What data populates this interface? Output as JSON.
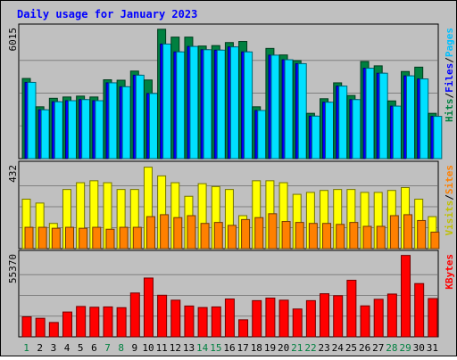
{
  "chart_data": {
    "type": "bar",
    "title": "Daily usage for January 2023",
    "categories": [
      "1",
      "2",
      "3",
      "4",
      "5",
      "6",
      "7",
      "8",
      "9",
      "10",
      "11",
      "12",
      "13",
      "14",
      "15",
      "16",
      "17",
      "18",
      "19",
      "20",
      "21",
      "22",
      "23",
      "24",
      "25",
      "26",
      "27",
      "28",
      "29",
      "30",
      "31"
    ],
    "weekend_days": [
      "1",
      "7",
      "8",
      "14",
      "15",
      "21",
      "22",
      "28",
      "29"
    ],
    "panels": [
      {
        "id": "hits-panel",
        "max_label": "6015",
        "ymax": 6015,
        "ylabel_parts": [
          {
            "text": "Hits",
            "color": "#008040"
          },
          {
            "text": "/",
            "color": "#000000"
          },
          {
            "text": "Files",
            "color": "#0000ff"
          },
          {
            "text": "/",
            "color": "#000000"
          },
          {
            "text": "Pages",
            "color": "#00c0ff"
          }
        ],
        "series": [
          {
            "name": "Hits",
            "color": "#008040",
            "values": [
              3680,
              2380,
              2770,
              2830,
              2870,
              2830,
              3620,
              3600,
              4020,
              3610,
              5940,
              5580,
              5580,
              5170,
              5190,
              5330,
              5380,
              2380,
              5060,
              4760,
              4500,
              2080,
              2750,
              3480,
              2900,
              4460,
              4260,
              2650,
              4000,
              4200,
              2080
            ]
          },
          {
            "name": "Files",
            "color": "#0000ff",
            "values": [
              3500,
              2240,
              2610,
              2660,
              2710,
              2660,
              3480,
              3300,
              3830,
              2990,
              5260,
              4900,
              5150,
              5000,
              4980,
              5130,
              4900,
              2210,
              4750,
              4540,
              4360,
              1950,
              2590,
              3330,
              2710,
              4150,
              3920,
              2410,
              3800,
              3660,
              1940
            ]
          },
          {
            "name": "Pages",
            "color": "#00e0ff",
            "values": [
              3500,
              2240,
              2610,
              2660,
              2710,
              2660,
              3480,
              3300,
              3830,
              2990,
              5260,
              4900,
              5150,
              5000,
              4980,
              5130,
              4900,
              2210,
              4750,
              4540,
              4360,
              1950,
              2590,
              3330,
              2710,
              4150,
              3920,
              2410,
              3800,
              3660,
              1940
            ]
          }
        ]
      },
      {
        "id": "visits-panel",
        "max_label": "432",
        "ymax": 432,
        "ylabel_parts": [
          {
            "text": "Visits",
            "color": "#c0c000"
          },
          {
            "text": "/",
            "color": "#000000"
          },
          {
            "text": "Sites",
            "color": "#ff8000"
          }
        ],
        "series": [
          {
            "name": "Visits",
            "color": "#ffff00",
            "values": [
              255,
              235,
              130,
              305,
              340,
              350,
              340,
              305,
              305,
              420,
              375,
              340,
              270,
              335,
              320,
              305,
              170,
              350,
              350,
              340,
              280,
              290,
              300,
              305,
              305,
              290,
              290,
              300,
              315,
              255,
              165
            ]
          },
          {
            "name": "Sites",
            "color": "#ff8000",
            "values": [
              110,
              110,
              105,
              110,
              105,
              110,
              100,
              110,
              110,
              165,
              175,
              160,
              170,
              130,
              135,
              120,
              150,
              160,
              180,
              140,
              135,
              130,
              130,
              125,
              135,
              115,
              115,
              170,
              175,
              145,
              85
            ]
          }
        ]
      },
      {
        "id": "kbytes-panel",
        "max_label": "55370",
        "ymax": 55370,
        "ylabel_parts": [
          {
            "text": "KBytes",
            "color": "#ff0000"
          }
        ],
        "series": [
          {
            "name": "KBytes",
            "color": "#ff0000",
            "values": [
              13400,
              12400,
              9600,
              16600,
              20300,
              19800,
              20000,
              19500,
              29300,
              39300,
              27800,
              24500,
              20600,
              19600,
              20000,
              25300,
              11400,
              24200,
              25900,
              24500,
              18600,
              24200,
              28800,
              27500,
              37800,
              20700,
              25100,
              28600,
              54400,
              35600,
              25600
            ]
          }
        ]
      }
    ]
  }
}
